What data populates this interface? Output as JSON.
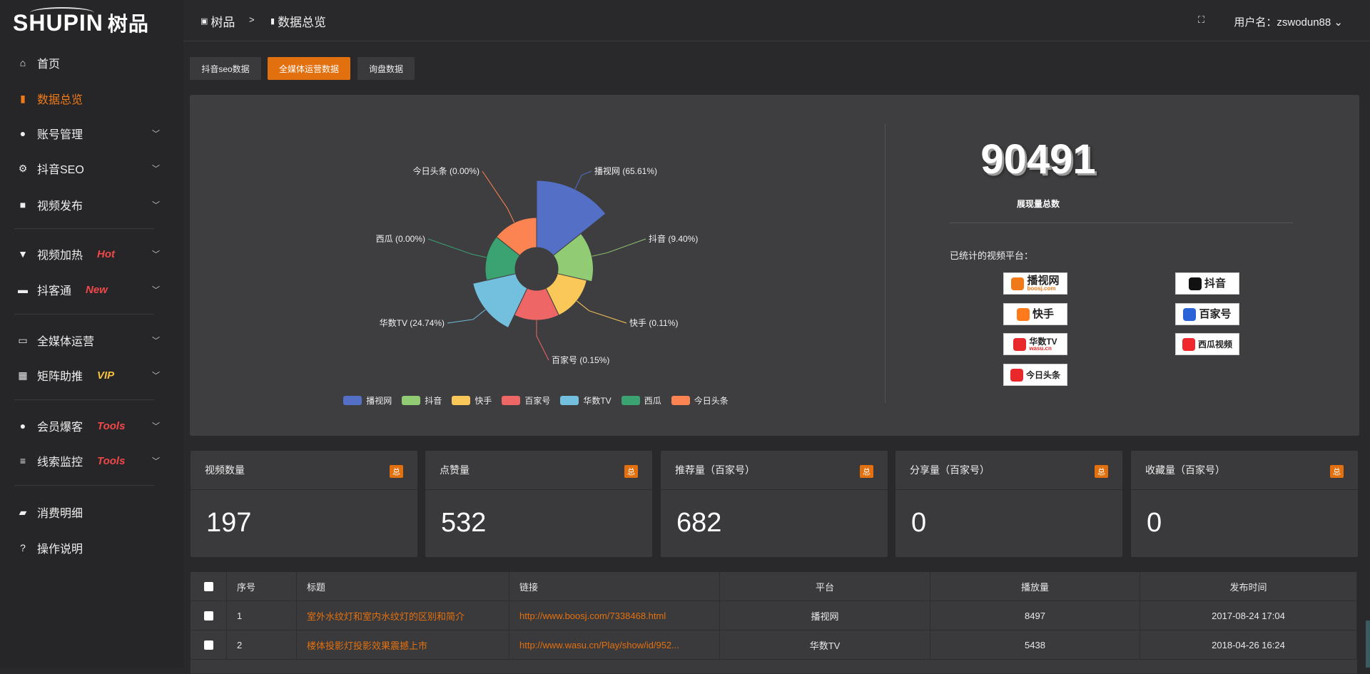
{
  "brand": {
    "logo_text": "SHUPIN",
    "logo_cn": "树品"
  },
  "breadcrumb": [
    {
      "label": "树品",
      "icon": "chart-line-icon"
    },
    {
      "label": "数据总览",
      "icon": "bar-chart-icon"
    }
  ],
  "breadcrumb_sep": ">",
  "header": {
    "user_label": "用户名：zswodun88",
    "fullscreen_icon": "fullscreen-icon"
  },
  "sidebar": {
    "items": [
      {
        "label": "首页",
        "icon": "home-icon"
      },
      {
        "label": "数据总览",
        "icon": "bar-chart-icon",
        "active": true
      },
      {
        "label": "账号管理",
        "icon": "user-icon",
        "chevron": true
      },
      {
        "label": "抖音SEO",
        "icon": "gear-icon",
        "chevron": true
      },
      {
        "label": "视频发布",
        "icon": "camera-icon",
        "chevron": true
      },
      {
        "label": "视频加热",
        "icon": "flag-icon",
        "tag": "Hot",
        "tag_color": "#f04848",
        "chevron": true
      },
      {
        "label": "抖客通",
        "icon": "comment-icon",
        "tag": "New",
        "tag_color": "#f04848",
        "chevron": true
      },
      {
        "label": "全媒体运营",
        "icon": "monitor-icon",
        "chevron": true
      },
      {
        "label": "矩阵助推",
        "icon": "grid-icon",
        "tag": "VIP",
        "tag_color": "#f5c242",
        "chevron": true
      },
      {
        "label": "会员爆客",
        "icon": "user-icon",
        "tag": "Tools",
        "tag_color": "#f04848",
        "chevron": true
      },
      {
        "label": "线索监控",
        "icon": "sliders-icon",
        "tag": "Tools",
        "tag_color": "#f04848",
        "chevron": true
      },
      {
        "label": "消费明细",
        "icon": "wallet-icon"
      },
      {
        "label": "操作说明",
        "icon": "question-icon"
      }
    ]
  },
  "tabs": [
    {
      "label": "抖音seo数据"
    },
    {
      "label": "全媒体运营数据",
      "active": true
    },
    {
      "label": "询盘数据"
    }
  ],
  "chart_data": {
    "type": "pie",
    "variant": "rose (nightingale, radius-scaled, donut)",
    "categories": [
      "播视网",
      "抖音",
      "快手",
      "百家号",
      "华数TV",
      "西瓜",
      "今日头条"
    ],
    "values": [
      65.61,
      9.4,
      0.11,
      0.15,
      24.74,
      0.0,
      0.0
    ],
    "labels": [
      "播视网 (65.61%)",
      "抖音 (9.40%)",
      "快手 (0.11%)",
      "百家号 (0.15%)",
      "华数TV (24.74%)",
      "西瓜 (0.00%)",
      "今日头条 (0.00%)"
    ],
    "colors": [
      "#5470c6",
      "#91cc75",
      "#fac858",
      "#ee6666",
      "#73c0de",
      "#3ba272",
      "#fc8452"
    ],
    "legend": "bottom"
  },
  "summary": {
    "total": "90491",
    "total_label": "展现量总数",
    "platforms_label": "已统计的视频平台：",
    "platforms": [
      {
        "name": "播视网",
        "sub": "boosj.com",
        "color": "#f07a18"
      },
      {
        "name": "抖音",
        "color": "#111"
      },
      {
        "name": "快手",
        "color": "#ff7a1a"
      },
      {
        "name": "百家号",
        "color": "#2a62d8"
      },
      {
        "name": "华数TV",
        "sub": "wasu.cn",
        "color": "#e8282a"
      },
      {
        "name": "西瓜视频",
        "color": "#f0282d"
      },
      {
        "name": "今日头条",
        "color": "#e8282a"
      }
    ]
  },
  "stats": [
    {
      "label": "视频数量",
      "badge": "总",
      "value": "197"
    },
    {
      "label": "点赞量",
      "badge": "总",
      "value": "532"
    },
    {
      "label": "推荐量（百家号）",
      "badge": "总",
      "value": "682"
    },
    {
      "label": "分享量（百家号）",
      "badge": "总",
      "value": "0"
    },
    {
      "label": "收藏量（百家号）",
      "badge": "总",
      "value": "0"
    }
  ],
  "table": {
    "columns": [
      "序号",
      "标题",
      "链接",
      "平台",
      "播放量",
      "发布时间"
    ],
    "rows": [
      [
        "1",
        "室外水纹灯和室内水纹灯的区别和简介",
        "http://www.boosj.com/7338468.html",
        "播视网",
        "8497",
        "2017-08-24 17:04"
      ],
      [
        "2",
        "楼体投影灯投影效果震撼上市",
        "http://www.wasu.cn/Play/show/id/952...",
        "华数TV",
        "5438",
        "2018-04-26 16:24"
      ]
    ]
  }
}
